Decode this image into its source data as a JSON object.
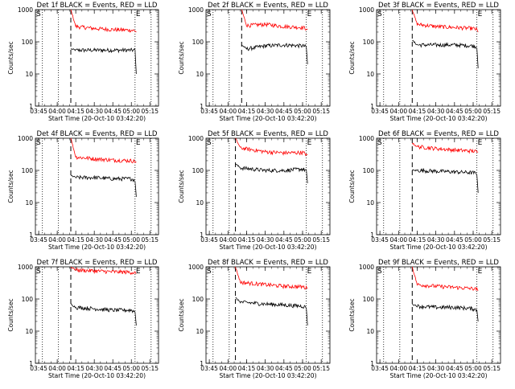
{
  "figure": {
    "xlabel": "Start Time (20-Oct-10 03:42:20)",
    "ylabel": "Counts/sec",
    "x_tick_labels": [
      "03:45",
      "04:00",
      "04:15",
      "04:30",
      "04:45",
      "05:00",
      "05:15"
    ],
    "y_tick_labels": [
      "1",
      "10",
      "100",
      "1000"
    ],
    "marker_start": "S",
    "marker_end": "E",
    "colors": {
      "events": "#000000",
      "lld": "#ff0000",
      "axes": "#000000"
    }
  },
  "chart_data": [
    {
      "type": "line",
      "title": "Det 1f BLACK = Events, RED = LLD",
      "xlabel": "Start Time (20-Oct-10 03:42:20)",
      "ylabel": "Counts/sec",
      "xlim": [
        "03:42:20",
        "05:22:00"
      ],
      "ylim": [
        1,
        1000
      ],
      "yscale": "log",
      "x": [
        "04:11",
        "04:15",
        "04:30",
        "04:45",
        "05:00",
        "05:03",
        "05:04"
      ],
      "series": [
        {
          "values": [
            60,
            55,
            55,
            55,
            55,
            55,
            10
          ]
        },
        {
          "values": [
            1000,
            300,
            260,
            240,
            230,
            220,
            200
          ]
        }
      ],
      "dotted_lines": [
        "03:48",
        "04:01",
        "05:03",
        "05:16"
      ],
      "dashed_line": "04:11"
    },
    {
      "type": "line",
      "title": "Det 2f BLACK = Events, RED = LLD",
      "xlabel": "Start Time (20-Oct-10 03:42:20)",
      "ylabel": "Counts/sec",
      "xlim": [
        "03:42:20",
        "05:22:00"
      ],
      "ylim": [
        1,
        1000
      ],
      "yscale": "log",
      "x": [
        "04:11",
        "04:15",
        "04:30",
        "04:45",
        "05:00",
        "05:03",
        "05:04"
      ],
      "series": [
        {
          "values": [
            80,
            60,
            75,
            80,
            75,
            70,
            20
          ]
        },
        {
          "values": [
            1000,
            320,
            350,
            300,
            280,
            260,
            240
          ]
        }
      ],
      "dotted_lines": [
        "03:48",
        "04:01",
        "05:03",
        "05:16"
      ],
      "dashed_line": "04:11"
    },
    {
      "type": "line",
      "title": "Det 3f BLACK = Events, RED = LLD",
      "xlabel": "Start Time (20-Oct-10 03:42:20)",
      "ylabel": "Counts/sec",
      "xlim": [
        "03:42:20",
        "05:22:00"
      ],
      "ylim": [
        1,
        1000
      ],
      "yscale": "log",
      "x": [
        "04:11",
        "04:15",
        "04:30",
        "04:45",
        "05:00",
        "05:03",
        "05:04"
      ],
      "series": [
        {
          "values": [
            110,
            80,
            80,
            80,
            75,
            70,
            15
          ]
        },
        {
          "values": [
            1000,
            350,
            300,
            280,
            260,
            240,
            200
          ]
        }
      ],
      "dotted_lines": [
        "03:48",
        "04:01",
        "05:03",
        "05:16"
      ],
      "dashed_line": "04:11"
    },
    {
      "type": "line",
      "title": "Det 4f BLACK = Events, RED = LLD",
      "xlabel": "Start Time (20-Oct-10 03:42:20)",
      "ylabel": "Counts/sec",
      "xlim": [
        "03:42:20",
        "05:22:00"
      ],
      "ylim": [
        1,
        1000
      ],
      "yscale": "log",
      "x": [
        "04:11",
        "04:15",
        "04:30",
        "04:45",
        "05:00",
        "05:03",
        "05:04"
      ],
      "series": [
        {
          "values": [
            70,
            60,
            60,
            55,
            55,
            50,
            15
          ]
        },
        {
          "values": [
            1000,
            260,
            230,
            210,
            200,
            190,
            180
          ]
        }
      ],
      "dotted_lines": [
        "03:48",
        "04:01",
        "05:03",
        "05:16"
      ],
      "dashed_line": "04:11"
    },
    {
      "type": "line",
      "title": "Det 5f BLACK = Events, RED = LLD",
      "xlabel": "Start Time (20-Oct-10 03:42:20)",
      "ylabel": "Counts/sec",
      "xlim": [
        "03:42:20",
        "05:22:00"
      ],
      "ylim": [
        1,
        1000
      ],
      "yscale": "log",
      "x": [
        "04:06",
        "04:10",
        "04:30",
        "04:45",
        "05:00",
        "05:03",
        "05:04"
      ],
      "series": [
        {
          "values": [
            160,
            120,
            100,
            100,
            110,
            100,
            40
          ]
        },
        {
          "values": [
            1000,
            500,
            380,
            350,
            360,
            320,
            300
          ]
        }
      ],
      "dotted_lines": [
        "03:48",
        "04:01",
        "05:03",
        "05:16"
      ],
      "dashed_line": "04:06"
    },
    {
      "type": "line",
      "title": "Det 6f BLACK = Events, RED = LLD",
      "xlabel": "Start Time (20-Oct-10 03:42:20)",
      "ylabel": "Counts/sec",
      "xlim": [
        "03:42:20",
        "05:22:00"
      ],
      "ylim": [
        1,
        1000
      ],
      "yscale": "log",
      "x": [
        "04:11",
        "04:15",
        "04:30",
        "04:45",
        "05:00",
        "05:03",
        "05:04"
      ],
      "series": [
        {
          "values": [
            100,
            100,
            95,
            90,
            85,
            80,
            20
          ]
        },
        {
          "values": [
            700,
            550,
            480,
            430,
            400,
            380,
            370
          ]
        }
      ],
      "dotted_lines": [
        "03:48",
        "04:01",
        "05:03",
        "05:16"
      ],
      "dashed_line": "04:11"
    },
    {
      "type": "line",
      "title": "Det 7f BLACK = Events, RED = LLD",
      "xlabel": "Start Time (20-Oct-10 03:42:20)",
      "ylabel": "Counts/sec",
      "xlim": [
        "03:42:20",
        "05:22:00"
      ],
      "ylim": [
        1,
        1000
      ],
      "yscale": "log",
      "x": [
        "04:11",
        "04:15",
        "04:30",
        "04:45",
        "05:00",
        "05:03",
        "05:04"
      ],
      "series": [
        {
          "values": [
            70,
            55,
            50,
            45,
            45,
            40,
            15
          ]
        },
        {
          "values": [
            1000,
            800,
            750,
            700,
            680,
            650,
            600
          ]
        }
      ],
      "dotted_lines": [
        "03:48",
        "04:01",
        "05:03",
        "05:16"
      ],
      "dashed_line": "04:11"
    },
    {
      "type": "line",
      "title": "Det 8f BLACK = Events, RED = LLD",
      "xlabel": "Start Time (20-Oct-10 03:42:20)",
      "ylabel": "Counts/sec",
      "xlim": [
        "03:42:20",
        "05:22:00"
      ],
      "ylim": [
        1,
        1000
      ],
      "yscale": "log",
      "x": [
        "04:06",
        "04:10",
        "04:30",
        "04:45",
        "05:00",
        "05:03",
        "05:04"
      ],
      "series": [
        {
          "values": [
            110,
            80,
            70,
            65,
            60,
            55,
            15
          ]
        },
        {
          "values": [
            1000,
            330,
            280,
            250,
            240,
            220,
            210
          ]
        }
      ],
      "dotted_lines": [
        "03:48",
        "04:01",
        "05:03",
        "05:16"
      ],
      "dashed_line": "04:06"
    },
    {
      "type": "line",
      "title": "Det 9f BLACK = Events, RED = LLD",
      "xlabel": "Start Time (20-Oct-10 03:42:20)",
      "ylabel": "Counts/sec",
      "xlim": [
        "03:42:20",
        "05:22:00"
      ],
      "ylim": [
        1,
        1000
      ],
      "yscale": "log",
      "x": [
        "04:11",
        "04:15",
        "04:30",
        "04:45",
        "05:00",
        "05:03",
        "05:04"
      ],
      "series": [
        {
          "values": [
            70,
            60,
            55,
            55,
            50,
            45,
            20
          ]
        },
        {
          "values": [
            1000,
            280,
            250,
            230,
            210,
            200,
            180
          ]
        }
      ],
      "dotted_lines": [
        "03:48",
        "04:01",
        "05:03",
        "05:16"
      ],
      "dashed_line": "04:11"
    }
  ]
}
